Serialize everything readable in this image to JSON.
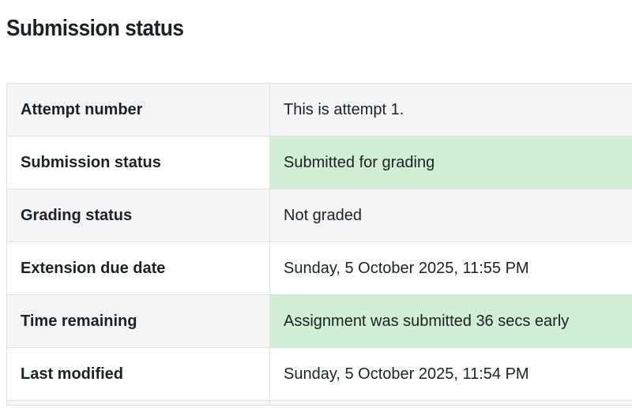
{
  "heading": "Submission status",
  "rows": [
    {
      "label": "Attempt number",
      "value": "This is attempt 1.",
      "highlight": false
    },
    {
      "label": "Submission status",
      "value": "Submitted for grading",
      "highlight": true
    },
    {
      "label": "Grading status",
      "value": "Not graded",
      "highlight": false
    },
    {
      "label": "Extension due date",
      "value": "Sunday, 5 October 2025, 11:55 PM",
      "highlight": false
    },
    {
      "label": "Time remaining",
      "value": "Assignment was submitted 36 secs early",
      "highlight": true
    },
    {
      "label": "Last modified",
      "value": "Sunday, 5 October 2025, 11:54 PM",
      "highlight": false
    }
  ],
  "colors": {
    "highlight": "#cfeed3",
    "stripe": "#f5f5f5"
  }
}
